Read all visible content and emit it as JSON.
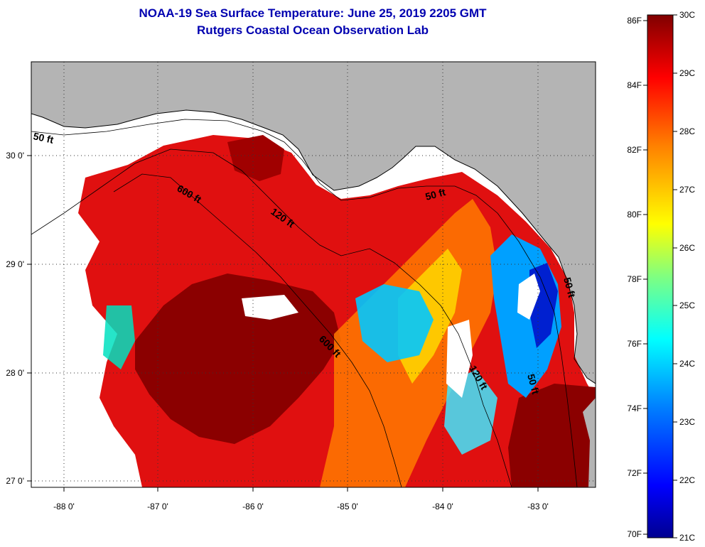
{
  "header": {
    "title": "NOAA-19 Sea Surface Temperature:  June 25, 2019 2205 GMT",
    "subtitle": "Rutgers Coastal Ocean Observation Lab"
  },
  "axes": {
    "x_ticks": [
      "-88 0'",
      "-87 0'",
      "-86 0'",
      "-85 0'",
      "-84 0'",
      "-83 0'"
    ],
    "y_ticks": [
      "30 0'",
      "29 0'",
      "28 0'",
      "27 0'"
    ]
  },
  "isobaths": [
    {
      "label": "50 ft"
    },
    {
      "label": "600 ft"
    },
    {
      "label": "120 ft"
    },
    {
      "label": "50 ft"
    },
    {
      "label": "600 ft"
    },
    {
      "label": "120 ft"
    },
    {
      "label": "50 ft"
    },
    {
      "label": "50 ft"
    }
  ],
  "colorbar": {
    "fahrenheit": [
      "86F",
      "84F",
      "82F",
      "80F",
      "78F",
      "76F",
      "74F",
      "72F",
      "70F"
    ],
    "celsius": [
      "30C",
      "29C",
      "28C",
      "27C",
      "26C",
      "25C",
      "24C",
      "23C",
      "22C",
      "21C"
    ],
    "colors": [
      "#000090",
      "#0000ff",
      "#0080ff",
      "#00ffff",
      "#80ff80",
      "#ffff00",
      "#ff8000",
      "#ff0000",
      "#800000"
    ]
  },
  "colors": {
    "land": "#b4b4b4",
    "cloud": "#ffffff",
    "warm": "#8b0000",
    "title": "#0000b0"
  }
}
